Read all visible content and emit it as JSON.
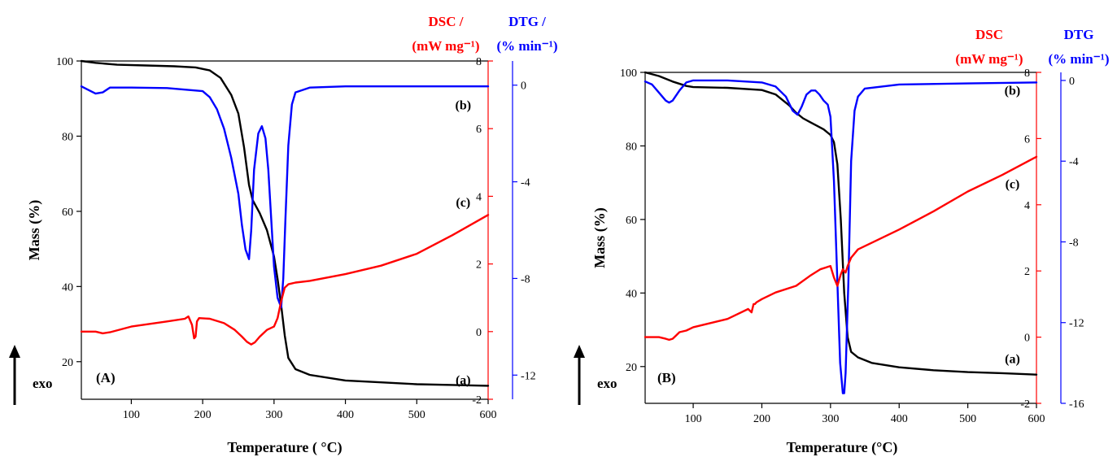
{
  "chart_data": [
    {
      "type": "line",
      "panel_label": "(A)",
      "xlabel": "Temperature (  °C)",
      "ylabel": "Mass (%)",
      "xlim": [
        30,
        600
      ],
      "ylim_mass": [
        10,
        100
      ],
      "ylim_dsc": [
        -2,
        8
      ],
      "ylim_dtg": [
        -13,
        1
      ],
      "x_ticks": [
        100,
        200,
        300,
        400,
        500,
        600
      ],
      "mass_ticks": [
        20,
        40,
        60,
        80,
        100
      ],
      "dsc_ticks": [
        -2,
        0,
        2,
        4,
        6,
        8
      ],
      "dtg_ticks": [
        0,
        -4,
        -8,
        -12
      ],
      "dsc_title_line1": "DSC /",
      "dsc_title_line2": "(mW mg⁻¹)",
      "dtg_title_line1": "DTG /",
      "dtg_title_line2": "(% min⁻¹)",
      "exo_label": "exo",
      "colors": {
        "mass": "#000000",
        "dsc": "#ff0000",
        "dtg": "#0000ff"
      },
      "series": [
        {
          "id": "mass",
          "axis": "mass",
          "label": "(a)",
          "label_at": [
            565,
            14
          ],
          "x": [
            30,
            50,
            80,
            120,
            160,
            190,
            210,
            225,
            240,
            250,
            258,
            265,
            270,
            280,
            290,
            300,
            305,
            310,
            315,
            320,
            330,
            350,
            400,
            450,
            500,
            550,
            600
          ],
          "y": [
            100,
            99.5,
            99,
            98.8,
            98.6,
            98.3,
            97.5,
            95.5,
            91,
            86,
            77,
            67,
            63,
            59.5,
            55,
            48,
            42,
            35,
            27,
            21,
            18,
            16.5,
            15,
            14.5,
            14,
            13.8,
            13.6
          ]
        },
        {
          "id": "dtg",
          "axis": "dtg",
          "label": "(b)",
          "label_at": [
            565,
            -1
          ],
          "x": [
            30,
            40,
            50,
            60,
            70,
            100,
            150,
            200,
            210,
            220,
            230,
            240,
            250,
            255,
            260,
            265,
            268,
            272,
            278,
            283,
            288,
            292,
            296,
            300,
            305,
            310,
            313,
            316,
            320,
            325,
            330,
            350,
            400,
            450,
            500,
            550,
            600
          ],
          "y": [
            -0.05,
            -0.2,
            -0.35,
            -0.3,
            -0.1,
            -0.1,
            -0.12,
            -0.25,
            -0.5,
            -1,
            -1.8,
            -3,
            -4.5,
            -5.8,
            -6.8,
            -7.2,
            -6,
            -3.5,
            -2,
            -1.7,
            -2.2,
            -3.5,
            -5.5,
            -7.5,
            -8.8,
            -9.2,
            -8,
            -5.5,
            -2.5,
            -0.8,
            -0.3,
            -0.1,
            -0.05,
            -0.05,
            -0.05,
            -0.05,
            -0.05
          ]
        },
        {
          "id": "dsc",
          "axis": "dsc",
          "label": "(c)",
          "label_at": [
            565,
            3.7
          ],
          "x": [
            30,
            50,
            60,
            70,
            100,
            150,
            175,
            180,
            185,
            188,
            190,
            192,
            195,
            210,
            230,
            245,
            255,
            262,
            268,
            273,
            280,
            290,
            300,
            305,
            310,
            315,
            320,
            330,
            350,
            400,
            450,
            500,
            550,
            600
          ],
          "y": [
            0,
            0,
            -0.05,
            -0.02,
            0.15,
            0.3,
            0.38,
            0.45,
            0.2,
            -0.2,
            -0.15,
            0.3,
            0.4,
            0.38,
            0.25,
            0.05,
            -0.15,
            -0.3,
            -0.38,
            -0.32,
            -0.15,
            0.05,
            0.15,
            0.4,
            0.9,
            1.3,
            1.4,
            1.45,
            1.5,
            1.7,
            1.95,
            2.3,
            2.85,
            3.45
          ]
        }
      ]
    },
    {
      "type": "line",
      "panel_label": "(B)",
      "xlabel": "Temperature (°C)",
      "ylabel": "Mass (%)",
      "xlim": [
        30,
        600
      ],
      "ylim_mass": [
        10,
        100
      ],
      "ylim_dsc": [
        -2,
        8
      ],
      "ylim_dtg": [
        -16,
        0.4
      ],
      "x_ticks": [
        100,
        200,
        300,
        400,
        500,
        600
      ],
      "mass_ticks": [
        20,
        40,
        60,
        80,
        100
      ],
      "dsc_ticks": [
        -2,
        0,
        2,
        4,
        6,
        8
      ],
      "dtg_ticks": [
        0,
        -4,
        -8,
        -12,
        -16
      ],
      "dsc_title_line1": "DSC",
      "dsc_title_line2": "(mW mg⁻¹)",
      "dtg_title_line1": "DTG",
      "dtg_title_line2": "(% min⁻¹)",
      "exo_label": "exo",
      "colors": {
        "mass": "#000000",
        "dsc": "#ff0000",
        "dtg": "#0000ff"
      },
      "series": [
        {
          "id": "mass",
          "axis": "mass",
          "label": "(a)",
          "label_at": [
            565,
            21
          ],
          "x": [
            30,
            50,
            70,
            90,
            100,
            150,
            200,
            220,
            240,
            250,
            260,
            270,
            280,
            290,
            300,
            305,
            310,
            315,
            320,
            325,
            330,
            340,
            360,
            400,
            450,
            500,
            550,
            600
          ],
          "y": [
            100,
            99,
            97.5,
            96.3,
            96,
            95.8,
            95.2,
            94,
            91,
            89,
            87.5,
            86.5,
            85.5,
            84.5,
            83,
            81,
            75,
            60,
            40,
            28,
            24,
            22.5,
            21,
            19.8,
            19,
            18.5,
            18.2,
            17.8
          ]
        },
        {
          "id": "dtg",
          "axis": "dtg",
          "label": "(b)",
          "label_at": [
            565,
            -0.7
          ],
          "x": [
            30,
            40,
            50,
            60,
            65,
            70,
            80,
            90,
            100,
            150,
            200,
            220,
            235,
            245,
            252,
            258,
            265,
            272,
            278,
            284,
            290,
            296,
            300,
            305,
            310,
            314,
            318,
            320,
            322,
            326,
            330,
            335,
            340,
            350,
            400,
            500,
            600
          ],
          "y": [
            -0.05,
            -0.2,
            -0.6,
            -1,
            -1.1,
            -1,
            -0.5,
            -0.1,
            0,
            0,
            -0.1,
            -0.3,
            -0.8,
            -1.5,
            -1.7,
            -1.3,
            -0.7,
            -0.5,
            -0.5,
            -0.7,
            -1,
            -1.2,
            -1.8,
            -5,
            -10,
            -14,
            -15.5,
            -15.5,
            -14.5,
            -10,
            -4,
            -1.5,
            -0.8,
            -0.4,
            -0.2,
            -0.15,
            -0.1
          ]
        },
        {
          "id": "dsc",
          "axis": "dsc",
          "label": "(c)",
          "label_at": [
            565,
            4.5
          ],
          "x": [
            30,
            50,
            60,
            65,
            70,
            75,
            80,
            90,
            100,
            150,
            180,
            185,
            188,
            190,
            192,
            200,
            220,
            250,
            270,
            285,
            300,
            305,
            310,
            315,
            318,
            322,
            325,
            330,
            340,
            360,
            400,
            450,
            500,
            550,
            600
          ],
          "y": [
            0,
            0,
            -0.05,
            -0.08,
            -0.05,
            0.05,
            0.15,
            0.2,
            0.3,
            0.55,
            0.85,
            0.75,
            1,
            1,
            1.05,
            1.15,
            1.35,
            1.55,
            1.85,
            2.05,
            2.15,
            1.8,
            1.55,
            1.9,
            2.05,
            1.95,
            2.15,
            2.4,
            2.65,
            2.85,
            3.25,
            3.8,
            4.4,
            4.9,
            5.45
          ]
        }
      ]
    }
  ]
}
